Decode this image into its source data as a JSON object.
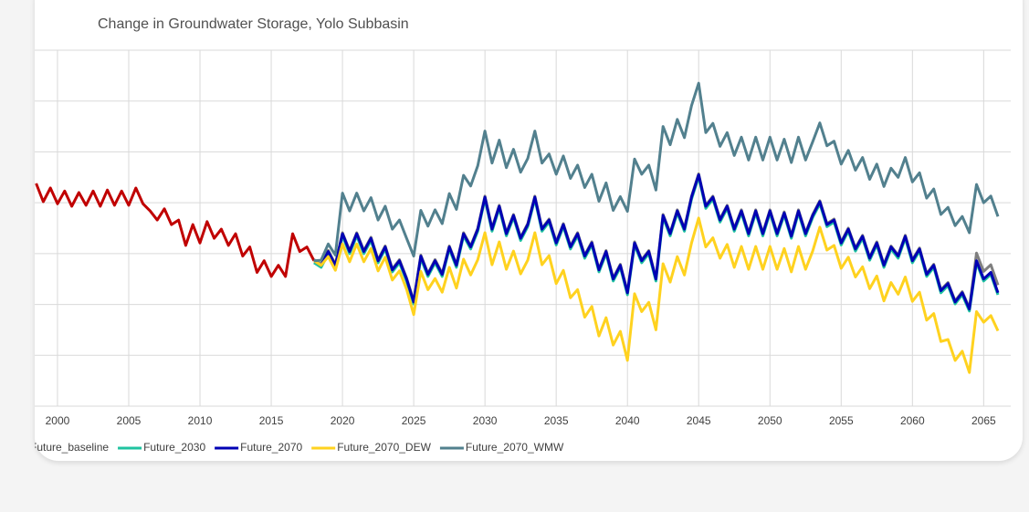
{
  "chart_data": {
    "type": "line",
    "title": "Change in Groundwater Storage, Yolo Subbasin",
    "xlim": [
      1998.4,
      2066.9
    ],
    "xticks": [
      2000,
      2005,
      2010,
      2015,
      2020,
      2025,
      2030,
      2035,
      2040,
      2045,
      2050,
      2055,
      2060,
      2065
    ],
    "ylim": [
      0,
      7
    ],
    "yticks": [
      0,
      1,
      2,
      3,
      4,
      5,
      6,
      7
    ],
    "grid": true,
    "x": [
      2018,
      2018.5,
      2019,
      2019.5,
      2020,
      2020.5,
      2021,
      2021.5,
      2022,
      2022.5,
      2023,
      2023.5,
      2024,
      2024.5,
      2025,
      2025.5,
      2026,
      2026.5,
      2027,
      2027.5,
      2028,
      2028.5,
      2029,
      2029.5,
      2030,
      2030.5,
      2031,
      2031.5,
      2032,
      2032.5,
      2033,
      2033.5,
      2034,
      2034.5,
      2035,
      2035.5,
      2036,
      2036.5,
      2037,
      2037.5,
      2038,
      2038.5,
      2039,
      2039.5,
      2040,
      2040.5,
      2041,
      2041.5,
      2042,
      2042.5,
      2043,
      2043.5,
      2044,
      2044.5,
      2045,
      2045.5,
      2046,
      2046.5,
      2047,
      2047.5,
      2048,
      2048.5,
      2049,
      2049.5,
      2050,
      2050.5,
      2051,
      2051.5,
      2052,
      2052.5,
      2053,
      2053.5,
      2054,
      2054.5,
      2055,
      2055.5,
      2056,
      2056.5,
      2057,
      2057.5,
      2058,
      2058.5,
      2059,
      2059.5,
      2060,
      2060.5,
      2061,
      2061.5,
      2062,
      2062.5,
      2063,
      2063.5,
      2064,
      2064.5,
      2065,
      2065.5,
      2066
    ],
    "series": [
      {
        "color": "#c00000",
        "x": [
          1998.5,
          1999,
          1999.5,
          2000,
          2000.5,
          2001,
          2001.5,
          2002,
          2002.5,
          2003,
          2003.5,
          2004,
          2004.5,
          2005,
          2005.5,
          2006,
          2006.5,
          2007,
          2007.5,
          2008,
          2008.5,
          2009,
          2009.5,
          2010,
          2010.5,
          2011,
          2011.5,
          2012,
          2012.5,
          2013,
          2013.5,
          2014,
          2014.5,
          2015,
          2015.5,
          2016,
          2016.5,
          2017,
          2017.5,
          2018
        ],
        "values": [
          4.38,
          4.02,
          4.29,
          3.98,
          4.23,
          3.93,
          4.2,
          3.95,
          4.23,
          3.93,
          4.25,
          3.95,
          4.23,
          3.95,
          4.29,
          3.98,
          3.84,
          3.66,
          3.88,
          3.57,
          3.66,
          3.16,
          3.57,
          3.21,
          3.63,
          3.3,
          3.48,
          3.16,
          3.39,
          2.95,
          3.13,
          2.63,
          2.86,
          2.55,
          2.77,
          2.55,
          3.39,
          3.04,
          3.13,
          2.86
        ]
      },
      {
        "name": "Future_baseline",
        "color": "#7f7f7f",
        "values": [
          2.88,
          2.79,
          3.06,
          2.79,
          3.41,
          3.06,
          3.41,
          3.06,
          3.32,
          2.88,
          3.15,
          2.7,
          2.88,
          2.52,
          2.07,
          2.97,
          2.61,
          2.88,
          2.61,
          3.15,
          2.79,
          3.41,
          3.15,
          3.5,
          4.13,
          3.5,
          3.95,
          3.41,
          3.77,
          3.32,
          3.59,
          4.13,
          3.5,
          3.68,
          3.23,
          3.59,
          3.15,
          3.41,
          2.97,
          3.23,
          2.7,
          3.06,
          2.52,
          2.79,
          2.25,
          3.23,
          2.88,
          3.06,
          2.52,
          3.77,
          3.41,
          3.86,
          3.5,
          4.13,
          4.57,
          3.95,
          4.13,
          3.68,
          3.95,
          3.5,
          3.86,
          3.41,
          3.86,
          3.41,
          3.86,
          3.41,
          3.82,
          3.36,
          3.86,
          3.41,
          3.77,
          4.04,
          3.59,
          3.68,
          3.23,
          3.5,
          3.11,
          3.36,
          2.93,
          3.23,
          2.79,
          3.15,
          2.97,
          3.36,
          2.88,
          3.11,
          2.61,
          2.79,
          2.29,
          2.43,
          2.07,
          2.25,
          1.93,
          3.01,
          2.65,
          2.78,
          2.38
        ]
      },
      {
        "name": "Future_2030",
        "color": "#1fc3a0",
        "values": [
          2.82,
          2.73,
          3.0,
          2.73,
          3.35,
          3.0,
          3.35,
          3.0,
          3.26,
          2.82,
          3.09,
          2.64,
          2.82,
          2.46,
          2.01,
          2.91,
          2.55,
          2.82,
          2.55,
          3.09,
          2.73,
          3.35,
          3.09,
          3.44,
          4.07,
          3.44,
          3.89,
          3.35,
          3.71,
          3.26,
          3.53,
          4.07,
          3.44,
          3.62,
          3.17,
          3.53,
          3.09,
          3.35,
          2.91,
          3.17,
          2.64,
          3.0,
          2.46,
          2.73,
          2.19,
          3.17,
          2.82,
          3.0,
          2.46,
          3.71,
          3.35,
          3.8,
          3.44,
          4.07,
          4.51,
          3.89,
          4.07,
          3.62,
          3.89,
          3.44,
          3.8,
          3.35,
          3.8,
          3.35,
          3.8,
          3.35,
          3.76,
          3.3,
          3.8,
          3.35,
          3.71,
          3.98,
          3.53,
          3.62,
          3.17,
          3.44,
          3.05,
          3.3,
          2.87,
          3.17,
          2.73,
          3.09,
          2.91,
          3.3,
          2.82,
          3.05,
          2.55,
          2.73,
          2.23,
          2.37,
          2.01,
          2.19,
          1.87,
          2.82,
          2.46,
          2.59,
          2.19
        ]
      },
      {
        "name": "Future_2070",
        "color": "#0000b4",
        "values": [
          2.86,
          2.77,
          3.04,
          2.77,
          3.39,
          3.04,
          3.39,
          3.04,
          3.3,
          2.86,
          3.13,
          2.68,
          2.86,
          2.5,
          2.05,
          2.95,
          2.59,
          2.86,
          2.59,
          3.13,
          2.77,
          3.39,
          3.13,
          3.48,
          4.11,
          3.48,
          3.93,
          3.39,
          3.75,
          3.3,
          3.57,
          4.11,
          3.48,
          3.66,
          3.21,
          3.57,
          3.13,
          3.39,
          2.95,
          3.21,
          2.68,
          3.04,
          2.5,
          2.77,
          2.23,
          3.21,
          2.86,
          3.04,
          2.5,
          3.75,
          3.39,
          3.84,
          3.48,
          4.11,
          4.55,
          3.93,
          4.11,
          3.66,
          3.93,
          3.48,
          3.84,
          3.39,
          3.84,
          3.39,
          3.84,
          3.39,
          3.8,
          3.34,
          3.84,
          3.39,
          3.75,
          4.02,
          3.57,
          3.66,
          3.21,
          3.48,
          3.09,
          3.34,
          2.91,
          3.21,
          2.77,
          3.13,
          2.95,
          3.34,
          2.86,
          3.09,
          2.59,
          2.77,
          2.27,
          2.41,
          2.05,
          2.23,
          1.91,
          2.86,
          2.5,
          2.63,
          2.23
        ]
      },
      {
        "name": "Future_2070_DEW",
        "color": "#ffd21f",
        "values": [
          2.86,
          2.77,
          2.94,
          2.67,
          3.19,
          2.84,
          3.19,
          2.84,
          3.1,
          2.66,
          2.93,
          2.48,
          2.66,
          2.3,
          1.8,
          2.65,
          2.29,
          2.51,
          2.24,
          2.73,
          2.32,
          2.89,
          2.58,
          2.88,
          3.41,
          2.78,
          3.23,
          2.69,
          3.05,
          2.6,
          2.87,
          3.41,
          2.78,
          2.96,
          2.41,
          2.67,
          2.13,
          2.29,
          1.75,
          1.96,
          1.38,
          1.74,
          1.2,
          1.47,
          0.9,
          2.21,
          1.86,
          2.04,
          1.5,
          2.8,
          2.44,
          2.94,
          2.58,
          3.21,
          3.7,
          3.13,
          3.31,
          2.91,
          3.18,
          2.73,
          3.14,
          2.69,
          3.14,
          2.69,
          3.14,
          2.69,
          3.1,
          2.64,
          3.14,
          2.69,
          3.05,
          3.52,
          3.07,
          3.16,
          2.71,
          2.93,
          2.54,
          2.74,
          2.31,
          2.56,
          2.07,
          2.43,
          2.2,
          2.54,
          2.06,
          2.24,
          1.69,
          1.82,
          1.27,
          1.31,
          0.9,
          1.08,
          0.66,
          1.86,
          1.65,
          1.78,
          1.48
        ]
      },
      {
        "name": "Future_2070_WMW",
        "color": "#52808e",
        "values": [
          2.86,
          2.87,
          3.19,
          2.97,
          4.19,
          3.84,
          4.19,
          3.84,
          4.1,
          3.66,
          3.93,
          3.48,
          3.66,
          3.3,
          2.95,
          3.85,
          3.54,
          3.86,
          3.59,
          4.18,
          3.87,
          4.54,
          4.33,
          4.73,
          5.41,
          4.78,
          5.23,
          4.69,
          5.05,
          4.6,
          4.87,
          5.41,
          4.78,
          4.96,
          4.56,
          4.92,
          4.48,
          4.74,
          4.3,
          4.56,
          4.03,
          4.39,
          3.85,
          4.12,
          3.83,
          4.86,
          4.56,
          4.74,
          4.25,
          5.5,
          5.14,
          5.64,
          5.28,
          5.91,
          6.35,
          5.38,
          5.56,
          5.11,
          5.38,
          4.93,
          5.29,
          4.84,
          5.29,
          4.84,
          5.29,
          4.84,
          5.25,
          4.79,
          5.29,
          4.84,
          5.2,
          5.57,
          5.12,
          5.21,
          4.76,
          5.03,
          4.64,
          4.89,
          4.46,
          4.76,
          4.32,
          4.68,
          4.5,
          4.89,
          4.41,
          4.59,
          4.09,
          4.27,
          3.77,
          3.91,
          3.55,
          3.73,
          3.41,
          4.36,
          4.0,
          4.13,
          3.73
        ]
      }
    ]
  }
}
